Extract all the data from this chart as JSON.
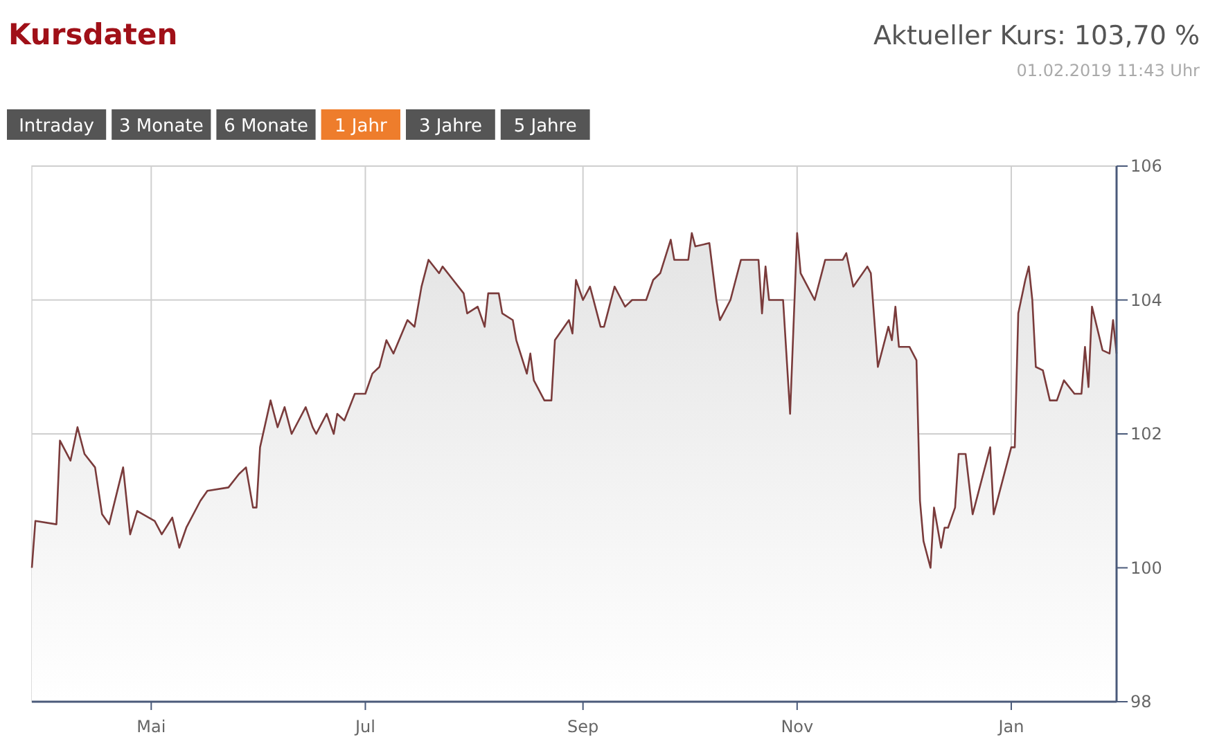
{
  "chart_data": {
    "type": "area",
    "title": "Kursdaten",
    "subtitle": "Aktueller Kurs: 103,70 %",
    "annotations": [
      "01.02.2019 11:43 Uhr",
      "Intraday",
      "3 Monate",
      "6 Monate",
      "1 Jahr",
      "3 Jahre",
      "5 Jahre"
    ],
    "x": [
      "2018-03-28",
      "2018-03-29",
      "2018-04-04",
      "2018-04-05",
      "2018-04-08",
      "2018-04-10",
      "2018-04-12",
      "2018-04-15",
      "2018-04-17",
      "2018-04-19",
      "2018-04-23",
      "2018-04-25",
      "2018-04-27",
      "2018-05-02",
      "2018-05-04",
      "2018-05-07",
      "2018-05-09",
      "2018-05-11",
      "2018-05-15",
      "2018-05-17",
      "2018-05-23",
      "2018-05-26",
      "2018-05-28",
      "2018-05-30",
      "2018-05-31",
      "2018-06-01",
      "2018-06-04",
      "2018-06-06",
      "2018-06-08",
      "2018-06-10",
      "2018-06-14",
      "2018-06-16",
      "2018-06-17",
      "2018-06-20",
      "2018-06-22",
      "2018-06-23",
      "2018-06-25",
      "2018-06-28",
      "2018-07-01",
      "2018-07-03",
      "2018-07-05",
      "2018-07-07",
      "2018-07-09",
      "2018-07-13",
      "2018-07-15",
      "2018-07-17",
      "2018-07-19",
      "2018-07-22",
      "2018-07-23",
      "2018-07-26",
      "2018-07-29",
      "2018-07-30",
      "2018-08-02",
      "2018-08-04",
      "2018-08-05",
      "2018-08-08",
      "2018-08-09",
      "2018-08-12",
      "2018-08-13",
      "2018-08-16",
      "2018-08-17",
      "2018-08-18",
      "2018-08-21",
      "2018-08-23",
      "2018-08-24",
      "2018-08-28",
      "2018-08-29",
      "2018-08-30",
      "2018-09-01",
      "2018-09-03",
      "2018-09-06",
      "2018-09-07",
      "2018-09-10",
      "2018-09-12",
      "2018-09-13",
      "2018-09-15",
      "2018-09-18",
      "2018-09-19",
      "2018-09-21",
      "2018-09-23",
      "2018-09-26",
      "2018-09-27",
      "2018-10-01",
      "2018-10-02",
      "2018-10-03",
      "2018-10-07",
      "2018-10-09",
      "2018-10-10",
      "2018-10-13",
      "2018-10-16",
      "2018-10-21",
      "2018-10-22",
      "2018-10-23",
      "2018-10-24",
      "2018-10-28",
      "2018-10-30",
      "2018-11-01",
      "2018-11-02",
      "2018-11-04",
      "2018-11-06",
      "2018-11-08",
      "2018-11-09",
      "2018-11-14",
      "2018-11-15",
      "2018-11-17",
      "2018-11-21",
      "2018-11-22",
      "2018-11-23",
      "2018-11-24",
      "2018-11-27",
      "2018-11-28",
      "2018-11-29",
      "2018-11-30",
      "2018-12-03",
      "2018-12-05",
      "2018-12-06",
      "2018-12-07",
      "2018-12-09",
      "2018-12-10",
      "2018-12-12",
      "2018-12-13",
      "2018-12-14",
      "2018-12-16",
      "2018-12-17",
      "2018-12-19",
      "2018-12-21",
      "2018-12-26",
      "2018-12-27",
      "2019-01-01",
      "2019-01-02",
      "2019-01-03",
      "2019-01-05",
      "2019-01-06",
      "2019-01-07",
      "2019-01-08",
      "2019-01-10",
      "2019-01-12",
      "2019-01-14",
      "2019-01-16",
      "2019-01-19",
      "2019-01-21",
      "2019-01-22",
      "2019-01-23",
      "2019-01-24",
      "2019-01-27",
      "2019-01-29",
      "2019-01-30",
      "2019-01-31"
    ],
    "series": [
      {
        "color": "#7a3b3b",
        "values": [
          100.0,
          100.7,
          100.65,
          101.9,
          101.6,
          102.1,
          101.7,
          101.5,
          100.8,
          100.65,
          101.5,
          100.5,
          100.85,
          100.7,
          100.5,
          100.75,
          100.3,
          100.6,
          101.0,
          101.15,
          101.2,
          101.4,
          101.5,
          100.9,
          100.9,
          101.8,
          102.5,
          102.1,
          102.4,
          102.0,
          102.4,
          102.1,
          102.0,
          102.3,
          102.0,
          102.3,
          102.2,
          102.6,
          102.6,
          102.9,
          103.0,
          103.4,
          103.2,
          103.7,
          103.6,
          104.2,
          104.6,
          104.4,
          104.5,
          104.3,
          104.1,
          103.8,
          103.9,
          103.6,
          104.1,
          104.1,
          103.8,
          103.7,
          103.4,
          102.9,
          103.2,
          102.8,
          102.5,
          102.5,
          103.4,
          103.7,
          103.5,
          104.3,
          104.0,
          104.2,
          103.6,
          103.6,
          104.2,
          104.0,
          103.9,
          104.0,
          104.0,
          104.0,
          104.3,
          104.4,
          104.9,
          104.6,
          104.6,
          105.0,
          104.8,
          104.85,
          104.0,
          103.7,
          104.0,
          104.6,
          104.6,
          103.8,
          104.5,
          104.0,
          104.0,
          102.3,
          105.0,
          104.4,
          104.2,
          104.0,
          104.4,
          104.6,
          104.6,
          104.7,
          104.2,
          104.5,
          104.4,
          103.7,
          103.0,
          103.6,
          103.4,
          103.9,
          103.3,
          103.3,
          103.1,
          101.0,
          100.4,
          100.0,
          100.9,
          100.3,
          100.6,
          100.6,
          100.9,
          101.7,
          101.7,
          100.8,
          101.8,
          100.8,
          101.8,
          101.8,
          103.8,
          104.3,
          104.5,
          104.0,
          103.0,
          102.95,
          102.5,
          102.5,
          102.8,
          102.6,
          102.6,
          103.3,
          102.7,
          103.9,
          103.25,
          103.2,
          103.7,
          103.2
        ]
      }
    ],
    "xlim": [
      "2018-03-28",
      "2019-01-31"
    ],
    "xticks": [
      {
        "value": "2018-05-01",
        "label": "Mai"
      },
      {
        "value": "2018-07-01",
        "label": "Jul"
      },
      {
        "value": "2018-09-01",
        "label": "Sep"
      },
      {
        "value": "2018-11-01",
        "label": "Nov"
      },
      {
        "value": "2019-01-01",
        "label": "Jan"
      }
    ],
    "ylim": [
      98,
      106
    ],
    "yticks": [
      98,
      100,
      102,
      104,
      106
    ],
    "grid": true,
    "marker": "none",
    "line_style": "solid"
  }
}
